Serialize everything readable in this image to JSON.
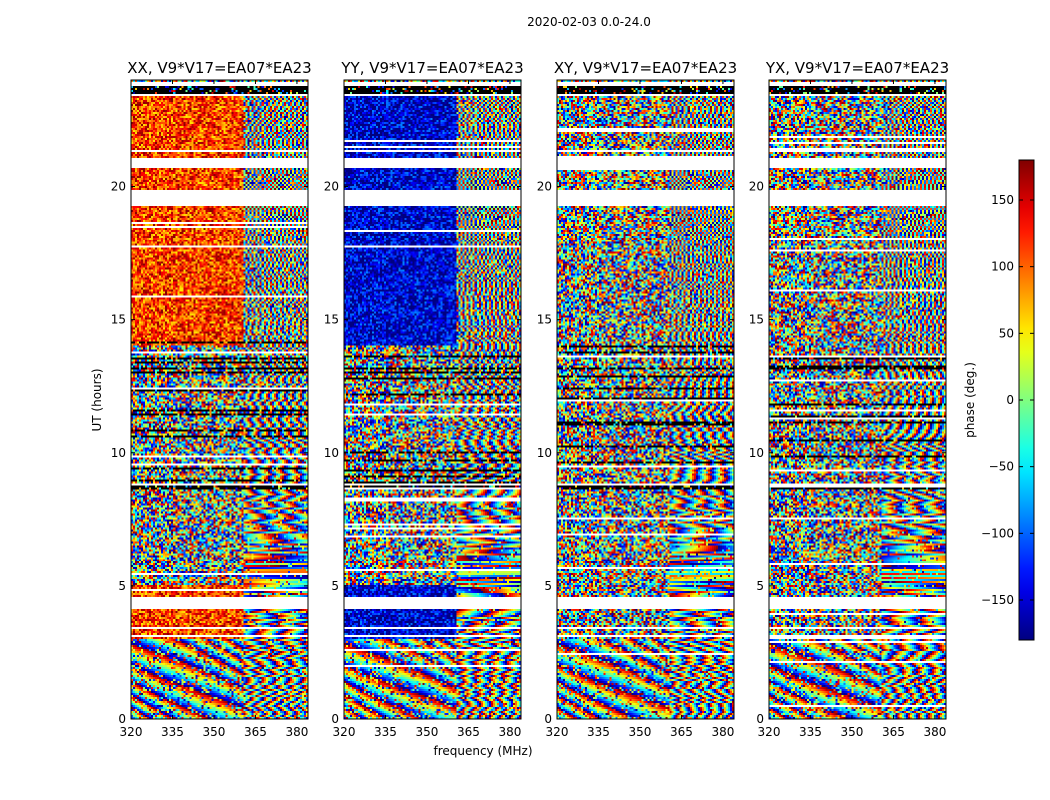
{
  "chart_data": {
    "type": "heatmap",
    "suptitle": "2020-02-03 0.0-24.0",
    "xlabel": "frequency (MHz)",
    "ylabel": "UT (hours)",
    "xlim": [
      320,
      384
    ],
    "ylim": [
      0,
      24
    ],
    "xticks": [
      "320",
      "335",
      "350",
      "365",
      "380"
    ],
    "yticks": [
      "0",
      "5",
      "10",
      "15",
      "20"
    ],
    "panels": [
      {
        "title": "XX, V9*V17=EA07*EA23",
        "low_freq_bias": 0.32
      },
      {
        "title": "YY, V9*V17=EA07*EA23",
        "low_freq_bias": -0.42
      },
      {
        "title": "XY, V9*V17=EA07*EA23",
        "low_freq_bias": null
      },
      {
        "title": "YX, V9*V17=EA07*EA23",
        "low_freq_bias": null
      }
    ],
    "colorbar": {
      "label": "phase (deg.)",
      "min": -180,
      "max": 180,
      "ticks": [
        "150",
        "100",
        "50",
        "0",
        "−50",
        "−100",
        "−150"
      ],
      "tick_values": [
        150,
        100,
        50,
        0,
        -50,
        -100,
        -150
      ],
      "colormap": "jet"
    },
    "flagged_ut_bands": [
      [
        3.05,
        3.12
      ],
      [
        3.35,
        3.45
      ],
      [
        4.15,
        4.55
      ],
      [
        5.75,
        5.8
      ],
      [
        6.95,
        7.0
      ],
      [
        8.8,
        8.85
      ],
      [
        19.3,
        19.85
      ],
      [
        20.7,
        21.1
      ],
      [
        21.3,
        21.35
      ],
      [
        23.4,
        23.5
      ],
      [
        23.75,
        23.9
      ]
    ],
    "dark_ut_bands": [
      [
        23.5,
        23.75
      ],
      [
        8.6,
        8.75
      ],
      [
        13.1,
        13.2
      ]
    ]
  },
  "colors": {
    "background": "#ffffff",
    "frame": "#000000",
    "flag_fill": "#ffffff",
    "dark_fill": "#000000"
  }
}
